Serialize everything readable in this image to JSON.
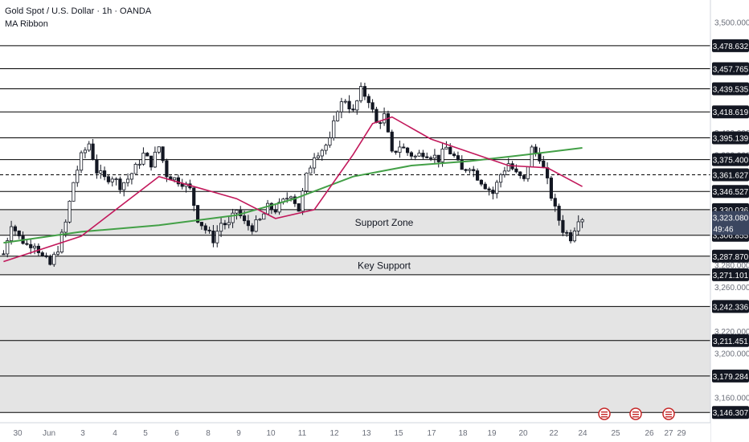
{
  "header": {
    "title": "Gold Spot / U.S. Dollar · 1h · OANDA",
    "indicator": "MA Ribbon"
  },
  "colors": {
    "candle": "#131722",
    "level_line": "#000000",
    "zone_fill": "#e4e4e4",
    "ma_fast": "#c2185b",
    "ma_slow": "#43a047",
    "axis_text": "#6b6f7a",
    "last_price_bg": "#3b4660",
    "event_icon": "#c62828"
  },
  "chart_data": {
    "type": "candlestick",
    "symbol": "XAUUSD",
    "timeframe": "1h",
    "ylim": [
      3137,
      3520
    ],
    "y_ticks": [
      3500,
      3400,
      3380,
      3280,
      3260,
      3220,
      3200,
      3160
    ],
    "y_tick_labels": [
      "3,500.000",
      "3,400.000",
      "3,380.000",
      "3,280.000",
      "3,260.000",
      "3,220.000",
      "3,200.000",
      "3,160.000"
    ],
    "x_ticks": [
      {
        "label": "30",
        "idx": 0
      },
      {
        "label": "Jun",
        "idx": 1
      },
      {
        "label": "3",
        "idx": 2
      },
      {
        "label": "4",
        "idx": 3
      },
      {
        "label": "5",
        "idx": 4
      },
      {
        "label": "6",
        "idx": 5
      },
      {
        "label": "8",
        "idx": 6
      },
      {
        "label": "9",
        "idx": 7
      },
      {
        "label": "10",
        "idx": 8
      },
      {
        "label": "11",
        "idx": 9
      },
      {
        "label": "12",
        "idx": 10
      },
      {
        "label": "13",
        "idx": 11
      },
      {
        "label": "15",
        "idx": 12
      },
      {
        "label": "17",
        "idx": 13
      },
      {
        "label": "18",
        "idx": 14
      },
      {
        "label": "19",
        "idx": 15
      },
      {
        "label": "20",
        "idx": 16
      },
      {
        "label": "22",
        "idx": 17
      },
      {
        "label": "24",
        "idx": 18
      },
      {
        "label": "25",
        "idx": 19
      },
      {
        "label": "26",
        "idx": 20
      },
      {
        "label": "27",
        "idx": 21
      },
      {
        "label": "29",
        "idx": 22
      }
    ],
    "levels": [
      {
        "price": 3478.632,
        "label": "3,478.632",
        "style": "solid"
      },
      {
        "price": 3457.765,
        "label": "3,457.765",
        "style": "solid"
      },
      {
        "price": 3439.535,
        "label": "3,439.535",
        "style": "solid"
      },
      {
        "price": 3418.619,
        "label": "3,418.619",
        "style": "solid"
      },
      {
        "price": 3395.139,
        "label": "3,395.139",
        "style": "solid"
      },
      {
        "price": 3375.4,
        "label": "3,375.400",
        "style": "solid"
      },
      {
        "price": 3361.627,
        "label": "3,361.627",
        "style": "dashed"
      },
      {
        "price": 3346.527,
        "label": "3,346.527",
        "style": "solid"
      },
      {
        "price": 3330.036,
        "label": "3,330.036",
        "style": "solid"
      },
      {
        "price": 3306.855,
        "label": "3,306.855",
        "style": "solid"
      },
      {
        "price": 3287.87,
        "label": "3,287.870",
        "style": "solid"
      },
      {
        "price": 3271.101,
        "label": "3,271.101",
        "style": "solid"
      },
      {
        "price": 3242.336,
        "label": "3,242.336",
        "style": "solid"
      },
      {
        "price": 3211.451,
        "label": "3,211.451",
        "style": "solid"
      },
      {
        "price": 3179.284,
        "label": "3,179.284",
        "style": "solid"
      },
      {
        "price": 3146.307,
        "label": "3,146.307",
        "style": "solid"
      }
    ],
    "zones": [
      {
        "top": 3330.036,
        "bottom": 3306.855,
        "label": "Support Zone"
      },
      {
        "top": 3287.87,
        "bottom": 3271.101,
        "label": "Key Support"
      },
      {
        "top": 3242.336,
        "bottom": 3146.307,
        "label": ""
      }
    ],
    "last_price": {
      "value": 3323.08,
      "label": "3,323.080",
      "countdown": "49:46"
    },
    "price_anchors": [
      [
        0,
        3290
      ],
      [
        2,
        3318
      ],
      [
        4,
        3305
      ],
      [
        6,
        3298
      ],
      [
        8,
        3300
      ],
      [
        10,
        3287
      ],
      [
        12,
        3280
      ],
      [
        14,
        3295
      ],
      [
        16,
        3318
      ],
      [
        18,
        3355
      ],
      [
        20,
        3378
      ],
      [
        22,
        3390
      ],
      [
        24,
        3365
      ],
      [
        26,
        3358
      ],
      [
        28,
        3360
      ],
      [
        30,
        3352
      ],
      [
        32,
        3358
      ],
      [
        34,
        3368
      ],
      [
        36,
        3380
      ],
      [
        38,
        3372
      ],
      [
        40,
        3387
      ],
      [
        42,
        3362
      ],
      [
        44,
        3358
      ],
      [
        46,
        3355
      ],
      [
        48,
        3348
      ],
      [
        50,
        3322
      ],
      [
        52,
        3312
      ],
      [
        54,
        3303
      ],
      [
        56,
        3318
      ],
      [
        58,
        3316
      ],
      [
        60,
        3330
      ],
      [
        62,
        3318
      ],
      [
        64,
        3314
      ],
      [
        66,
        3320
      ],
      [
        68,
        3332
      ],
      [
        70,
        3330
      ],
      [
        72,
        3337
      ],
      [
        74,
        3345
      ],
      [
        76,
        3330
      ],
      [
        78,
        3360
      ],
      [
        80,
        3380
      ],
      [
        82,
        3385
      ],
      [
        84,
        3392
      ],
      [
        86,
        3422
      ],
      [
        88,
        3430
      ],
      [
        90,
        3418
      ],
      [
        92,
        3438
      ],
      [
        94,
        3430
      ],
      [
        96,
        3408
      ],
      [
        98,
        3415
      ],
      [
        100,
        3380
      ],
      [
        102,
        3388
      ],
      [
        104,
        3382
      ],
      [
        106,
        3378
      ],
      [
        108,
        3382
      ],
      [
        110,
        3380
      ],
      [
        112,
        3376
      ],
      [
        114,
        3386
      ],
      [
        116,
        3378
      ],
      [
        118,
        3365
      ],
      [
        120,
        3370
      ],
      [
        122,
        3360
      ],
      [
        124,
        3352
      ],
      [
        126,
        3345
      ],
      [
        128,
        3362
      ],
      [
        130,
        3372
      ],
      [
        132,
        3362
      ],
      [
        134,
        3356
      ],
      [
        136,
        3385
      ],
      [
        138,
        3378
      ],
      [
        140,
        3355
      ],
      [
        142,
        3330
      ],
      [
        144,
        3312
      ],
      [
        146,
        3305
      ],
      [
        148,
        3323
      ]
    ],
    "ma_fast": [
      [
        0,
        3283
      ],
      [
        20,
        3306
      ],
      [
        40,
        3360
      ],
      [
        60,
        3340
      ],
      [
        70,
        3322
      ],
      [
        80,
        3330
      ],
      [
        90,
        3380
      ],
      [
        95,
        3408
      ],
      [
        100,
        3414
      ],
      [
        110,
        3394
      ],
      [
        120,
        3382
      ],
      [
        130,
        3370
      ],
      [
        140,
        3368
      ],
      [
        149,
        3351
      ]
    ],
    "ma_slow": [
      [
        0,
        3300
      ],
      [
        20,
        3310
      ],
      [
        40,
        3316
      ],
      [
        60,
        3325
      ],
      [
        75,
        3340
      ],
      [
        90,
        3360
      ],
      [
        105,
        3370
      ],
      [
        120,
        3374
      ],
      [
        135,
        3380
      ],
      [
        149,
        3386
      ]
    ],
    "event_markers": [
      {
        "idx": 20
      },
      {
        "idx": 21
      },
      {
        "idx": 22
      }
    ]
  }
}
